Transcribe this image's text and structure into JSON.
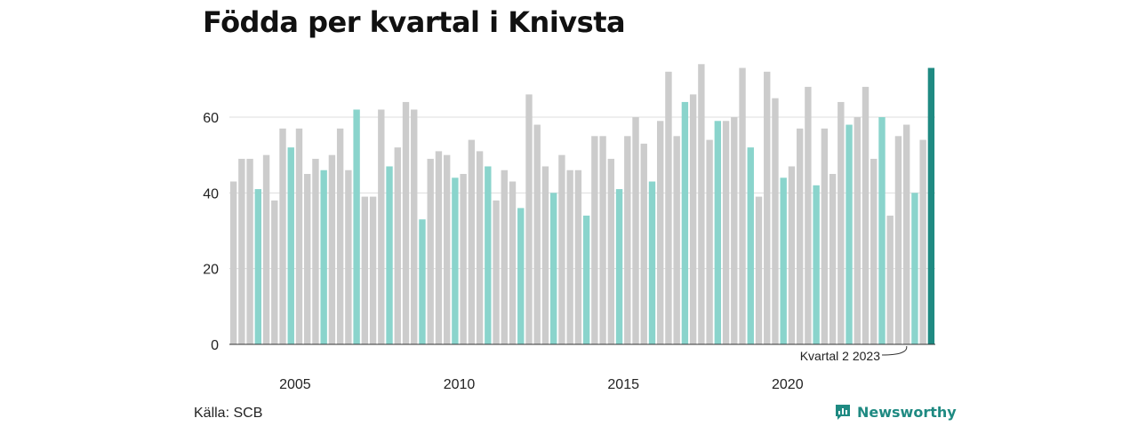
{
  "title": "Födda per kvartal i Knivsta",
  "source": "Källa: SCB",
  "brand": "Newsworthy",
  "colors": {
    "highlight": "#8ad4cc",
    "default": "#cccccc",
    "latest": "#1f8a82",
    "grid": "#dddddd",
    "axis": "#333333"
  },
  "chart_data": {
    "type": "bar",
    "title": "Födda per kvartal i Knivsta",
    "xlabel": "",
    "ylabel": "",
    "ylim": [
      0,
      75
    ],
    "yticks": [
      0,
      20,
      40,
      60
    ],
    "grid": true,
    "first_period": "2003 Q3",
    "x_tick_labels": [
      "2005",
      "2010",
      "2015",
      "2020"
    ],
    "highlighted_quarter": "Q2",
    "annotation": "Kvartal 2 2023",
    "values": [
      43,
      49,
      49,
      41,
      50,
      38,
      57,
      52,
      57,
      45,
      49,
      46,
      50,
      57,
      46,
      62,
      39,
      39,
      62,
      47,
      52,
      64,
      62,
      33,
      49,
      51,
      50,
      44,
      45,
      54,
      51,
      47,
      38,
      46,
      43,
      36,
      66,
      58,
      47,
      40,
      50,
      46,
      46,
      34,
      55,
      55,
      49,
      41,
      55,
      60,
      53,
      43,
      59,
      72,
      55,
      64,
      66,
      74,
      54,
      59,
      59,
      60,
      73,
      52,
      39,
      72,
      65,
      44,
      47,
      57,
      68,
      42,
      57,
      45,
      64,
      58,
      60,
      68,
      49,
      60,
      34,
      55,
      58,
      40,
      54,
      73
    ]
  }
}
